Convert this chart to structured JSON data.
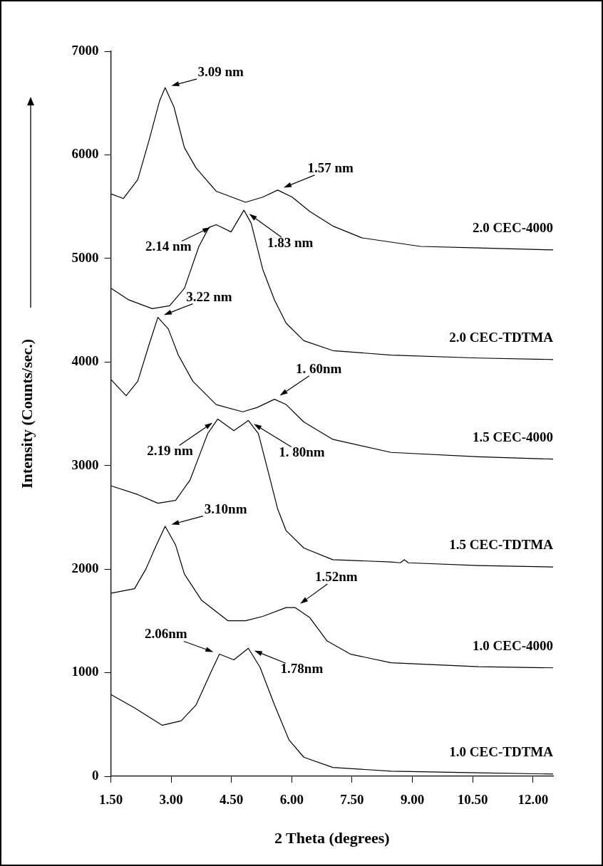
{
  "chart_data": {
    "type": "line",
    "xlabel": "2 Theta (degrees)",
    "ylabel": "Intensity (Counts/sec.)",
    "xlim": [
      1.5,
      12.5
    ],
    "xticks": [
      {
        "value": 1.5,
        "label": "1.50"
      },
      {
        "value": 3,
        "label": "3.00"
      },
      {
        "value": 4.5,
        "label": "4.50"
      },
      {
        "value": 6,
        "label": "6.00"
      },
      {
        "value": 7.5,
        "label": "7.50"
      },
      {
        "value": 9,
        "label": "9.00"
      },
      {
        "value": 10.5,
        "label": "10.50"
      },
      {
        "value": 12,
        "label": "12.00"
      }
    ],
    "ylim": [
      0,
      7000
    ],
    "yticks": [
      0,
      1000,
      2000,
      3000,
      4000,
      5000,
      6000,
      7000
    ],
    "grid": false,
    "marker": "none",
    "line_style": "solid",
    "series": [
      {
        "name": "2.0 CEC-4000",
        "color": "#000000",
        "x": [
          1.51,
          1.81,
          2.17,
          2.46,
          2.71,
          2.85,
          3.07,
          3.33,
          3.62,
          4.12,
          4.85,
          5.28,
          5.65,
          6.01,
          6.45,
          7.02,
          7.74,
          9.2,
          10.64,
          12.5
        ],
        "values": [
          5622,
          5578,
          5761,
          6153,
          6518,
          6650,
          6462,
          6069,
          5873,
          5649,
          5542,
          5592,
          5660,
          5592,
          5453,
          5313,
          5199,
          5116,
          5101,
          5082
        ]
      },
      {
        "name": "2.0 CEC-TDTMA",
        "color": "#000000",
        "x": [
          1.51,
          1.95,
          2.53,
          2.96,
          3.33,
          3.44,
          3.69,
          3.94,
          4.12,
          4.49,
          4.81,
          4.99,
          5.28,
          5.57,
          5.86,
          6.3,
          7.02,
          8.47,
          10.64,
          12.5
        ],
        "values": [
          4711,
          4599,
          4515,
          4543,
          4711,
          4835,
          5116,
          5299,
          5326,
          5256,
          5466,
          5340,
          4893,
          4599,
          4375,
          4206,
          4110,
          4066,
          4038,
          4024
        ]
      },
      {
        "name": "1.5 CEC-4000",
        "color": "#000000",
        "x": [
          1.51,
          1.88,
          2.17,
          2.46,
          2.67,
          2.93,
          3.18,
          3.54,
          4.12,
          4.78,
          5.14,
          5.57,
          5.86,
          6.3,
          7.02,
          8.47,
          10.64,
          12.5
        ],
        "values": [
          3828,
          3674,
          3814,
          4179,
          4431,
          4319,
          4066,
          3814,
          3589,
          3519,
          3561,
          3640,
          3589,
          3421,
          3253,
          3127,
          3085,
          3062
        ]
      },
      {
        "name": "1.5 CEC-TDTMA",
        "color": "#000000",
        "x": [
          1.51,
          2.17,
          2.67,
          3.11,
          3.47,
          3.69,
          3.91,
          4.16,
          4.56,
          4.92,
          5.17,
          5.43,
          5.65,
          5.86,
          6.3,
          7.02,
          8.47,
          8.7,
          8.8,
          8.9,
          10.64,
          12.5
        ],
        "values": [
          2804,
          2720,
          2636,
          2664,
          2860,
          3085,
          3309,
          3449,
          3337,
          3435,
          3309,
          2916,
          2580,
          2371,
          2204,
          2091,
          2069,
          2061,
          2091,
          2061,
          2035,
          2021
        ]
      },
      {
        "name": "1.0 CEC-4000",
        "color": "#000000",
        "x": [
          1.51,
          2.09,
          2.38,
          2.6,
          2.85,
          3.11,
          3.33,
          3.76,
          4.41,
          4.85,
          5.28,
          5.86,
          6.08,
          6.45,
          6.88,
          7.46,
          8.47,
          10.64,
          12.5
        ],
        "values": [
          1768,
          1811,
          2007,
          2204,
          2414,
          2234,
          1952,
          1698,
          1502,
          1502,
          1544,
          1629,
          1629,
          1531,
          1306,
          1179,
          1096,
          1058,
          1047
        ]
      },
      {
        "name": "1.0 CEC-TDTMA",
        "color": "#000000",
        "x": [
          1.51,
          2.09,
          2.78,
          3.25,
          3.62,
          3.98,
          4.2,
          4.56,
          4.92,
          5.21,
          5.57,
          5.93,
          6.3,
          7.02,
          8.47,
          10.64,
          12.5
        ],
        "values": [
          787,
          660,
          492,
          535,
          689,
          997,
          1179,
          1124,
          1236,
          1054,
          689,
          352,
          184,
          85,
          49,
          34,
          21
        ]
      }
    ],
    "annotations": [
      {
        "text": "3.09 nm",
        "x": 2.85,
        "y": 6650
      },
      {
        "text": "1.57 nm",
        "x": 5.65,
        "y": 5660
      },
      {
        "text": "2.14 nm",
        "x": 4.12,
        "y": 5326
      },
      {
        "text": "1.83 nm",
        "x": 4.81,
        "y": 5466
      },
      {
        "text": "3.22 nm",
        "x": 2.67,
        "y": 4431
      },
      {
        "text": "1. 60nm",
        "x": 5.57,
        "y": 3640
      },
      {
        "text": "2.19 nm",
        "x": 4.16,
        "y": 3449
      },
      {
        "text": "1. 80nm",
        "x": 4.92,
        "y": 3435
      },
      {
        "text": "3.10nm",
        "x": 2.85,
        "y": 2414
      },
      {
        "text": "1.52nm",
        "x": 6.08,
        "y": 1629
      },
      {
        "text": "2.06nm",
        "x": 4.2,
        "y": 1179
      },
      {
        "text": "1.78nm",
        "x": 4.92,
        "y": 1236
      }
    ]
  }
}
